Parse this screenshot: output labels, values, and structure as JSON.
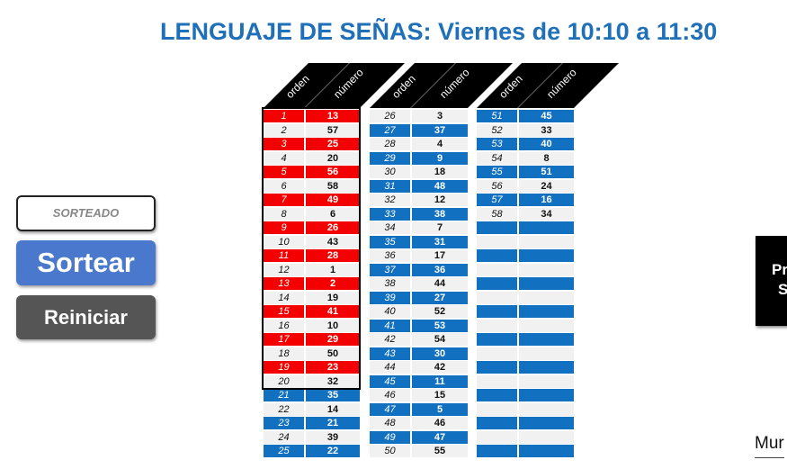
{
  "title": "LENGUAJE DE SEÑAS: Viernes de 10:10 a 11:30",
  "headers": {
    "orden": "orden",
    "numero": "número"
  },
  "columns": [
    {
      "start": 1,
      "numbers": [
        "13",
        "57",
        "25",
        "20",
        "56",
        "58",
        "49",
        "6",
        "26",
        "43",
        "28",
        "1",
        "2",
        "19",
        "41",
        "10",
        "29",
        "50",
        "23",
        "32",
        "35",
        "14",
        "21",
        "39",
        "22"
      ]
    },
    {
      "start": 26,
      "numbers": [
        "3",
        "37",
        "4",
        "9",
        "18",
        "48",
        "12",
        "38",
        "7",
        "31",
        "17",
        "36",
        "44",
        "27",
        "52",
        "53",
        "54",
        "30",
        "42",
        "11",
        "15",
        "5",
        "46",
        "47",
        "55"
      ]
    },
    {
      "start": 51,
      "numbers": [
        "45",
        "33",
        "40",
        "8",
        "51",
        "24",
        "16",
        "34",
        "",
        "",
        "",
        "",
        "",
        "",
        "",
        "",
        "",
        "",
        "",
        "",
        "",
        "",
        "",
        "",
        ""
      ]
    }
  ],
  "highlighted_until": 20,
  "sorteado_field": "SORTEADO",
  "buttons": {
    "sortear": "Sortear",
    "reiniciar": "Reiniciar"
  },
  "side_box": {
    "line1": "Pr",
    "line2": "S"
  },
  "footer_text": "Mur",
  "colors": {
    "title": "#1f70b8",
    "red": "#f40000",
    "blue": "#1170c0"
  }
}
